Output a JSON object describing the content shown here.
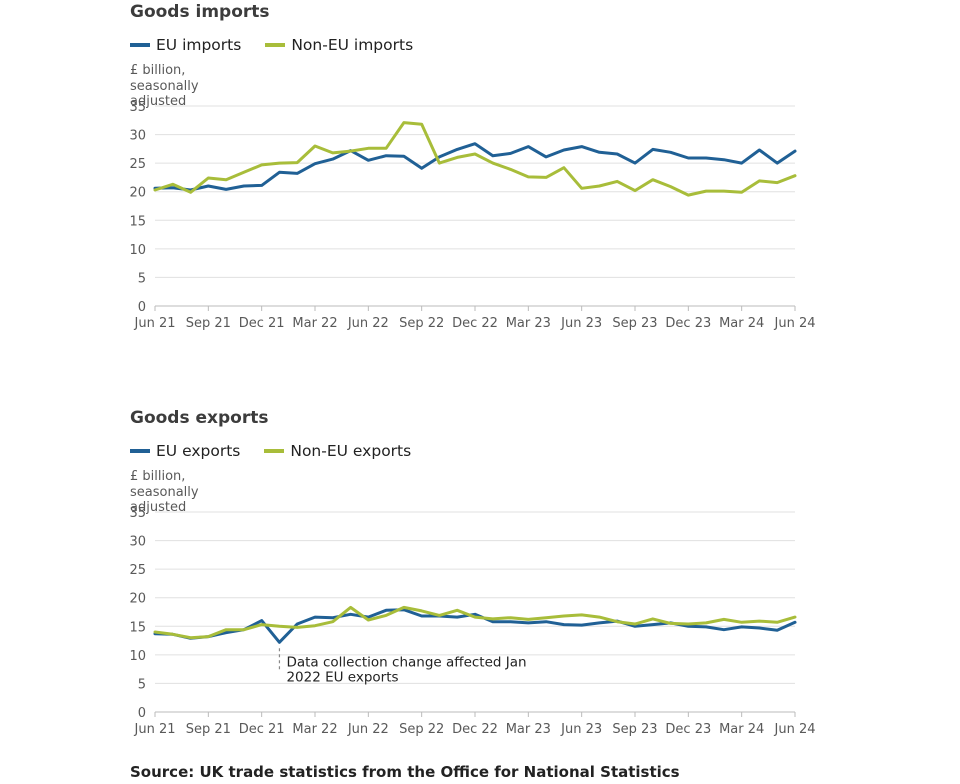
{
  "source": "Source: UK trade statistics from the Office for National Statistics",
  "colors": {
    "eu": "#206095",
    "non_eu": "#a8bd3a",
    "grid": "#e0e0e0",
    "axis": "#bbbbbb",
    "text": "#595959"
  },
  "chart_data": [
    {
      "type": "line",
      "title": "Goods imports",
      "ylabel": "£ billion, seasonally adjusted",
      "ylim": [
        0,
        35
      ],
      "yticks": [
        0,
        5,
        10,
        15,
        20,
        25,
        30,
        35
      ],
      "xtick_labels": [
        "Jun 21",
        "Sep 21",
        "Dec 21",
        "Mar 22",
        "Jun 22",
        "Sep 22",
        "Dec 22",
        "Mar 23",
        "Jun 23",
        "Sep 23",
        "Dec 23",
        "Mar 24",
        "Jun 24"
      ],
      "x": [
        "Jun 21",
        "Jul 21",
        "Aug 21",
        "Sep 21",
        "Oct 21",
        "Nov 21",
        "Dec 21",
        "Jan 22",
        "Feb 22",
        "Mar 22",
        "Apr 22",
        "May 22",
        "Jun 22",
        "Jul 22",
        "Aug 22",
        "Sep 22",
        "Oct 22",
        "Nov 22",
        "Dec 22",
        "Jan 23",
        "Feb 23",
        "Mar 23",
        "Apr 23",
        "May 23",
        "Jun 23",
        "Jul 23",
        "Aug 23",
        "Sep 23",
        "Oct 23",
        "Nov 23",
        "Dec 23",
        "Jan 24",
        "Feb 24",
        "Mar 24",
        "Apr 24",
        "May 24",
        "Jun 24"
      ],
      "legend_position": "top-left",
      "series": [
        {
          "name": "EU imports",
          "color": "#206095",
          "values": [
            20.6,
            20.7,
            20.3,
            21.0,
            20.4,
            21.0,
            21.1,
            23.4,
            23.2,
            24.9,
            25.7,
            27.2,
            25.5,
            26.3,
            26.2,
            24.1,
            26.1,
            27.4,
            28.4,
            26.3,
            26.7,
            27.9,
            26.1,
            27.3,
            27.9,
            26.9,
            26.6,
            25.0,
            27.4,
            26.9,
            25.9,
            25.9,
            25.6,
            25.0,
            27.3,
            25.0,
            27.1
          ]
        },
        {
          "name": "Non-EU imports",
          "color": "#a8bd3a",
          "values": [
            20.3,
            21.3,
            19.9,
            22.4,
            22.1,
            23.4,
            24.7,
            25.0,
            25.1,
            28.0,
            26.8,
            27.1,
            27.6,
            27.6,
            32.1,
            31.8,
            25.0,
            26.0,
            26.6,
            25.0,
            23.9,
            22.6,
            22.5,
            24.2,
            20.6,
            21.0,
            21.8,
            20.2,
            22.1,
            20.9,
            19.4,
            20.1,
            20.1,
            19.9,
            21.9,
            21.6,
            22.8
          ]
        }
      ]
    },
    {
      "type": "line",
      "title": "Goods exports",
      "ylabel": "£ billion, seasonally adjusted",
      "ylim": [
        0,
        35
      ],
      "yticks": [
        0,
        5,
        10,
        15,
        20,
        25,
        30,
        35
      ],
      "xtick_labels": [
        "Jun 21",
        "Sep 21",
        "Dec 21",
        "Mar 22",
        "Jun 22",
        "Sep 22",
        "Dec 22",
        "Mar 23",
        "Jun 23",
        "Sep 23",
        "Dec 23",
        "Mar 24",
        "Jun 24"
      ],
      "x": [
        "Jun 21",
        "Jul 21",
        "Aug 21",
        "Sep 21",
        "Oct 21",
        "Nov 21",
        "Dec 21",
        "Jan 22",
        "Feb 22",
        "Mar 22",
        "Apr 22",
        "May 22",
        "Jun 22",
        "Jul 22",
        "Aug 22",
        "Sep 22",
        "Oct 22",
        "Nov 22",
        "Dec 22",
        "Jan 23",
        "Feb 23",
        "Mar 23",
        "Apr 23",
        "May 23",
        "Jun 23",
        "Jul 23",
        "Aug 23",
        "Sep 23",
        "Oct 23",
        "Nov 23",
        "Dec 23",
        "Jan 24",
        "Feb 24",
        "Mar 24",
        "Apr 24",
        "May 24",
        "Jun 24"
      ],
      "legend_position": "top-left",
      "series": [
        {
          "name": "EU exports",
          "color": "#206095",
          "values": [
            13.7,
            13.6,
            12.9,
            13.2,
            13.9,
            14.4,
            16.0,
            12.2,
            15.4,
            16.6,
            16.5,
            17.1,
            16.6,
            17.8,
            17.9,
            16.8,
            16.8,
            16.6,
            17.1,
            15.8,
            15.8,
            15.6,
            15.8,
            15.3,
            15.2,
            15.6,
            15.9,
            15.0,
            15.3,
            15.6,
            15.0,
            14.9,
            14.4,
            14.9,
            14.7,
            14.3,
            15.7
          ]
        },
        {
          "name": "Non-EU exports",
          "color": "#a8bd3a",
          "values": [
            14.0,
            13.6,
            13.0,
            13.2,
            14.4,
            14.4,
            15.3,
            15.0,
            14.8,
            15.1,
            15.8,
            18.3,
            16.1,
            16.9,
            18.3,
            17.7,
            16.9,
            17.8,
            16.6,
            16.3,
            16.5,
            16.2,
            16.5,
            16.8,
            17.0,
            16.6,
            15.8,
            15.4,
            16.3,
            15.5,
            15.4,
            15.6,
            16.2,
            15.7,
            15.9,
            15.7,
            16.6
          ]
        }
      ],
      "annotation": {
        "text": "Data collection change affected Jan 2022 EU exports",
        "text_line1": "Data collection change affected Jan",
        "text_line2": "2022 EU exports",
        "x": "Jan 22",
        "y": 12.2
      }
    }
  ]
}
